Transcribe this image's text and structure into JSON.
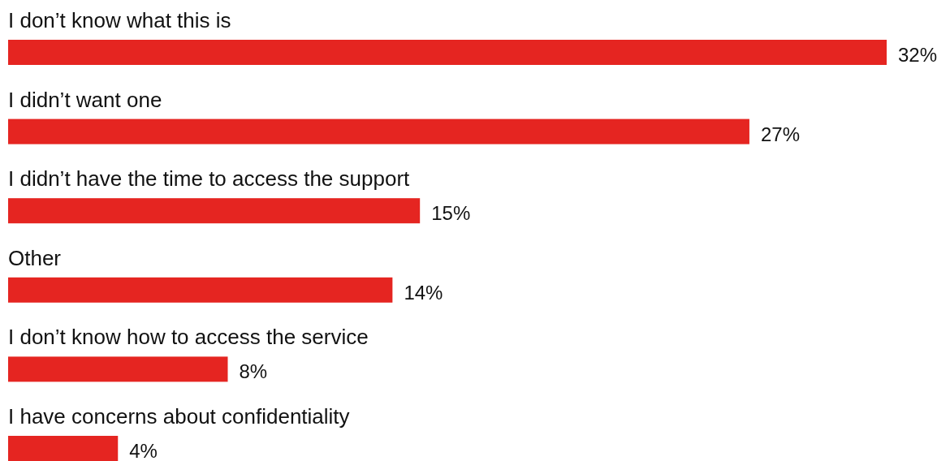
{
  "chart_data": {
    "type": "bar",
    "orientation": "horizontal",
    "categories": [
      "I don’t know what this is",
      "I didn’t want one",
      "I didn’t have the time to access the support",
      "Other",
      "I don’t know how to access the service",
      "I have concerns about confidentiality"
    ],
    "values": [
      32,
      27,
      15,
      14,
      8,
      4
    ],
    "value_labels": [
      "32%",
      "27%",
      "15%",
      "14%",
      "8%",
      "4%"
    ],
    "color": "#e52521"
  }
}
